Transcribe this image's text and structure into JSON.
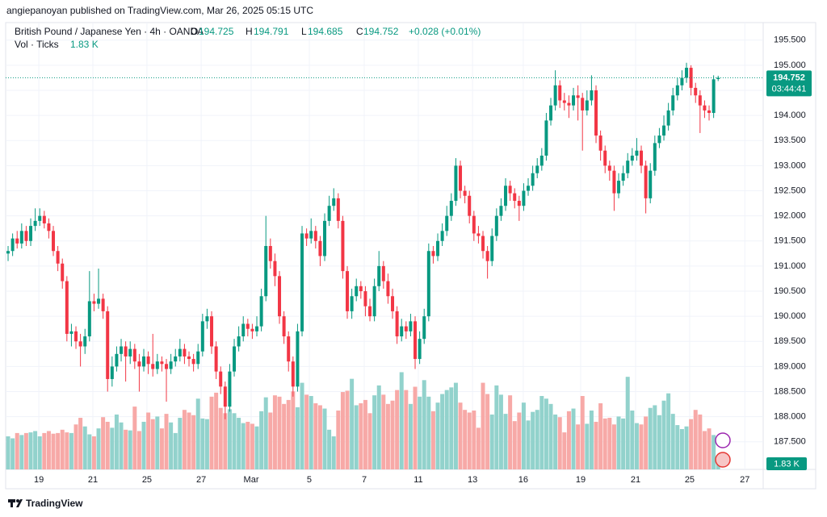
{
  "header": {
    "publisher": "angiepanoyan published on TradingView.com, Mar 26, 2025 05:15 UTC",
    "footer_brand": "TradingView"
  },
  "chart_data": {
    "type": "candlestick",
    "title": "British Pound / Japanese Yen · 4h · OANDA",
    "ohlc_labels": [
      "O",
      "H",
      "L",
      "C"
    ],
    "change": "+0.028 (+0.01%)",
    "volume_title": "Vol · Ticks",
    "volume_last_label": "1.83 K",
    "countdown": "03:44:41",
    "up_color": "#089981",
    "down_color": "#f23645",
    "volume_up_color": "#92d2cc",
    "volume_down_color": "#f7a9a7",
    "grid": true,
    "xlim": [
      -1.79,
      166.96
    ],
    "xticks": [
      {
        "value": 6.8,
        "label": "19"
      },
      {
        "value": 18.75,
        "label": "21"
      },
      {
        "value": 30.7,
        "label": "25"
      },
      {
        "value": 42.7,
        "label": "27"
      },
      {
        "value": 53.75,
        "label": "Mar"
      },
      {
        "value": 66.6,
        "label": "5"
      },
      {
        "value": 78.75,
        "label": "7"
      },
      {
        "value": 90.7,
        "label": "11"
      },
      {
        "value": 102.7,
        "label": "13"
      },
      {
        "value": 113.9,
        "label": "16"
      },
      {
        "value": 126.6,
        "label": "19"
      },
      {
        "value": 138.75,
        "label": "21"
      },
      {
        "value": 150.7,
        "label": "25"
      },
      {
        "value": 162.9,
        "label": "27"
      }
    ],
    "ylim": [
      186.95,
      195.85
    ],
    "yticks": [
      {
        "value": 187.5,
        "label": "187.500"
      },
      {
        "value": 188,
        "label": "188.000"
      },
      {
        "value": 188.5,
        "label": "188.500"
      },
      {
        "value": 189,
        "label": "189.000"
      },
      {
        "value": 189.5,
        "label": "189.500"
      },
      {
        "value": 190,
        "label": "190.000"
      },
      {
        "value": 190.5,
        "label": "190.500"
      },
      {
        "value": 191,
        "label": "191.000"
      },
      {
        "value": 191.5,
        "label": "191.500"
      },
      {
        "value": 192,
        "label": "192.000"
      },
      {
        "value": 192.5,
        "label": "192.500"
      },
      {
        "value": 193,
        "label": "193.000"
      },
      {
        "value": 193.5,
        "label": "193.500"
      },
      {
        "value": 194,
        "label": "194.000"
      },
      {
        "value": 194.5,
        "label": "194.500"
      },
      {
        "value": 195,
        "label": "195.000"
      },
      {
        "value": 195.5,
        "label": "195.500"
      }
    ],
    "volume_lim": [
      0,
      20000
    ],
    "open": [
      191.25,
      191.3,
      191.55,
      191.45,
      191.7,
      191.5,
      191.8,
      191.9,
      192.0,
      191.85,
      191.7,
      191.3,
      191.05,
      190.7,
      189.65,
      189.7,
      189.5,
      189.4,
      189.6,
      190.3,
      190.25,
      190.35,
      190.1,
      188.75,
      189.0,
      189.25,
      189.4,
      189.2,
      189.35,
      189.1,
      189.0,
      189.2,
      189.05,
      188.95,
      189.1,
      189.05,
      188.95,
      189.1,
      189.2,
      189.35,
      189.2,
      189.15,
      189.05,
      189.3,
      189.9,
      190.0,
      189.4,
      188.9,
      188.6,
      188.2,
      188.9,
      189.4,
      189.6,
      189.85,
      189.75,
      189.7,
      189.8,
      190.4,
      191.4,
      191.1,
      190.8,
      190.0,
      189.6,
      189.1,
      188.6,
      189.7,
      191.65,
      191.55,
      191.7,
      191.5,
      191.2,
      191.9,
      192.2,
      192.35,
      191.9,
      190.9,
      190.1,
      190.4,
      190.6,
      190.5,
      190.2,
      190.0,
      190.6,
      191.0,
      190.7,
      190.4,
      190.1,
      189.6,
      189.8,
      189.7,
      189.9,
      189.15,
      189.55,
      190.0,
      191.3,
      191.2,
      191.5,
      191.7,
      192.0,
      192.3,
      193.0,
      192.5,
      192.4,
      192.0,
      191.65,
      191.6,
      191.3,
      191.1,
      191.6,
      192.0,
      192.2,
      192.6,
      192.45,
      192.3,
      192.2,
      192.5,
      192.6,
      192.85,
      193.0,
      193.2,
      193.9,
      194.2,
      194.6,
      194.3,
      194.25,
      194.2,
      194.4,
      194.35,
      194.1,
      194.3,
      194.5,
      193.6,
      193.3,
      193.0,
      192.9,
      192.45,
      192.7,
      192.85,
      193.1,
      193.2,
      193.3,
      193.0,
      192.35,
      192.9,
      193.45,
      193.6,
      193.8,
      194.1,
      194.4,
      194.6,
      194.75,
      194.95,
      194.55,
      194.4,
      194.2,
      194.1,
      194.05,
      194.725
    ],
    "high": [
      191.4,
      191.65,
      191.7,
      191.85,
      191.8,
      191.95,
      192.15,
      192.15,
      192.1,
      191.95,
      191.8,
      191.4,
      191.15,
      190.8,
      189.85,
      189.8,
      189.65,
      189.75,
      190.9,
      190.45,
      190.95,
      190.45,
      190.2,
      189.2,
      189.4,
      189.55,
      189.5,
      189.5,
      189.45,
      189.25,
      189.35,
      189.3,
      189.65,
      189.25,
      189.2,
      189.15,
      189.25,
      189.35,
      189.55,
      189.45,
      189.3,
      189.25,
      189.45,
      190.05,
      190.15,
      190.1,
      189.5,
      189.0,
      188.7,
      189.05,
      189.55,
      189.8,
      190.0,
      189.95,
      189.85,
      190.0,
      190.55,
      192.0,
      191.55,
      191.25,
      190.9,
      190.1,
      189.7,
      189.2,
      189.85,
      191.8,
      191.75,
      191.95,
      191.8,
      191.6,
      192.05,
      192.4,
      192.55,
      192.45,
      192.0,
      191.0,
      190.55,
      190.75,
      190.7,
      190.6,
      190.35,
      190.75,
      191.3,
      191.1,
      190.85,
      190.55,
      190.2,
      189.95,
      189.9,
      190.05,
      190.0,
      189.7,
      190.15,
      191.45,
      191.4,
      191.65,
      191.85,
      192.2,
      192.45,
      193.15,
      193.1,
      192.6,
      192.5,
      192.1,
      191.8,
      191.7,
      191.4,
      191.75,
      192.15,
      192.35,
      192.75,
      192.7,
      192.55,
      192.4,
      192.65,
      192.75,
      193.0,
      193.15,
      193.35,
      194.05,
      194.35,
      194.9,
      194.7,
      194.45,
      194.4,
      194.55,
      194.6,
      194.45,
      194.5,
      194.8,
      194.6,
      193.7,
      193.4,
      193.1,
      193.0,
      192.85,
      193.0,
      193.25,
      193.35,
      193.55,
      193.4,
      193.1,
      193.05,
      193.6,
      193.75,
      194.0,
      194.25,
      194.55,
      194.75,
      194.9,
      195.05,
      195.0,
      194.65,
      194.5,
      194.3,
      194.2,
      194.8,
      194.791
    ],
    "low": [
      191.1,
      191.2,
      191.35,
      191.35,
      191.4,
      191.4,
      191.7,
      191.8,
      191.75,
      191.55,
      191.2,
      190.9,
      190.55,
      189.5,
      189.4,
      189.35,
      189.0,
      189.25,
      189.5,
      190.1,
      190.15,
      189.95,
      188.5,
      188.6,
      188.9,
      189.1,
      188.7,
      189.05,
      188.95,
      188.5,
      188.9,
      188.85,
      188.8,
      188.85,
      188.9,
      188.3,
      188.85,
      189.0,
      189.1,
      189.05,
      189.0,
      188.9,
      188.95,
      189.2,
      189.75,
      189.25,
      188.75,
      188.45,
      187.95,
      188.1,
      188.8,
      189.3,
      189.5,
      189.6,
      189.55,
      189.6,
      189.7,
      190.3,
      190.95,
      190.6,
      189.85,
      189.45,
      188.9,
      188.4,
      188.5,
      189.6,
      191.4,
      191.45,
      191.35,
      191.0,
      191.1,
      191.8,
      192.1,
      191.75,
      190.75,
      189.95,
      189.95,
      190.3,
      190.35,
      190.0,
      189.9,
      189.9,
      190.5,
      190.55,
      190.25,
      189.95,
      189.45,
      189.5,
      189.55,
      189.6,
      188.95,
      189.05,
      189.45,
      189.9,
      191.05,
      191.1,
      191.4,
      191.6,
      191.9,
      192.2,
      192.35,
      192.25,
      191.85,
      191.5,
      191.45,
      191.15,
      190.75,
      191.0,
      191.5,
      191.9,
      192.1,
      192.3,
      192.15,
      191.9,
      192.1,
      192.4,
      192.5,
      192.75,
      192.9,
      193.1,
      193.8,
      194.1,
      194.15,
      194.1,
      193.95,
      194.1,
      193.9,
      193.3,
      194.0,
      194.2,
      193.45,
      193.1,
      192.85,
      192.7,
      192.1,
      192.35,
      192.6,
      192.75,
      193.0,
      193.1,
      192.85,
      192.05,
      192.25,
      192.8,
      193.35,
      193.5,
      193.7,
      194.0,
      194.3,
      194.5,
      194.65,
      194.4,
      194.25,
      193.65,
      193.95,
      193.9,
      193.95,
      194.685
    ],
    "close": [
      191.3,
      191.55,
      191.45,
      191.7,
      191.5,
      191.8,
      191.9,
      192.0,
      191.85,
      191.7,
      191.3,
      191.05,
      190.7,
      189.65,
      189.7,
      189.5,
      189.4,
      189.6,
      190.3,
      190.25,
      190.35,
      190.1,
      188.75,
      189.0,
      189.25,
      189.4,
      189.2,
      189.35,
      189.1,
      189.0,
      189.2,
      189.05,
      188.95,
      189.1,
      189.05,
      188.95,
      189.1,
      189.2,
      189.35,
      189.2,
      189.15,
      189.05,
      189.3,
      189.9,
      190.0,
      189.4,
      188.9,
      188.6,
      188.2,
      188.9,
      189.4,
      189.6,
      189.85,
      189.75,
      189.7,
      189.8,
      190.4,
      191.4,
      191.1,
      190.8,
      190.0,
      189.6,
      189.1,
      188.6,
      189.7,
      191.65,
      191.55,
      191.7,
      191.5,
      191.2,
      191.9,
      192.2,
      192.35,
      191.9,
      190.9,
      190.1,
      190.4,
      190.6,
      190.5,
      190.2,
      190.0,
      190.6,
      191.0,
      190.7,
      190.4,
      190.1,
      189.6,
      189.8,
      189.7,
      189.9,
      189.15,
      189.55,
      190.0,
      191.3,
      191.2,
      191.5,
      191.7,
      192.0,
      192.3,
      193.0,
      192.5,
      192.4,
      192.0,
      191.65,
      191.6,
      191.3,
      191.1,
      191.6,
      192.0,
      192.2,
      192.6,
      192.45,
      192.3,
      192.2,
      192.5,
      192.6,
      192.85,
      193.0,
      193.2,
      193.9,
      194.2,
      194.6,
      194.3,
      194.25,
      194.2,
      194.4,
      194.35,
      194.1,
      194.3,
      194.5,
      193.6,
      193.3,
      193.0,
      192.9,
      192.45,
      192.7,
      192.85,
      193.1,
      193.2,
      193.3,
      193.0,
      192.35,
      192.9,
      193.45,
      193.6,
      193.8,
      194.1,
      194.4,
      194.6,
      194.75,
      194.95,
      194.55,
      194.4,
      194.2,
      194.1,
      194.05,
      194.72,
      194.752
    ],
    "volume": [
      5000,
      4700,
      5500,
      5200,
      5500,
      5600,
      5800,
      5000,
      5500,
      5800,
      5400,
      5500,
      6000,
      5600,
      5500,
      6800,
      7800,
      6500,
      5300,
      5000,
      6200,
      7900,
      7200,
      6300,
      8300,
      7100,
      6000,
      5900,
      9500,
      5800,
      7200,
      8600,
      7600,
      8000,
      6200,
      8400,
      7100,
      5500,
      7800,
      9000,
      8600,
      8200,
      10700,
      7700,
      7600,
      11000,
      11600,
      9300,
      8500,
      9100,
      8500,
      7800,
      7000,
      7200,
      6900,
      6500,
      8800,
      10900,
      8600,
      11200,
      11000,
      9900,
      10500,
      11800,
      9400,
      13100,
      11300,
      11100,
      10000,
      9700,
      9200,
      6000,
      5000,
      8900,
      11700,
      11900,
      13700,
      9700,
      10000,
      10500,
      8500,
      11200,
      12700,
      11300,
      9900,
      10400,
      12000,
      14700,
      12000,
      9900,
      12500,
      11000,
      13500,
      11000,
      8800,
      10100,
      11400,
      12000,
      12400,
      13100,
      10100,
      9000,
      8600,
      8900,
      6300,
      13100,
      11400,
      8300,
      12700,
      11300,
      8400,
      11200,
      7300,
      8600,
      10100,
      7400,
      8700,
      9000,
      11100,
      10700,
      9900,
      8300,
      7900,
      5600,
      8800,
      9200,
      6800,
      11100,
      6900,
      8900,
      7200,
      10000,
      7700,
      7800,
      6800,
      8000,
      7700,
      14000,
      8900,
      7000,
      6800,
      8000,
      9300,
      9700,
      8200,
      10400,
      11500,
      8400,
      6700,
      6100,
      6500,
      7600,
      9000,
      8300,
      5800,
      6200,
      5200,
      1830
    ]
  }
}
